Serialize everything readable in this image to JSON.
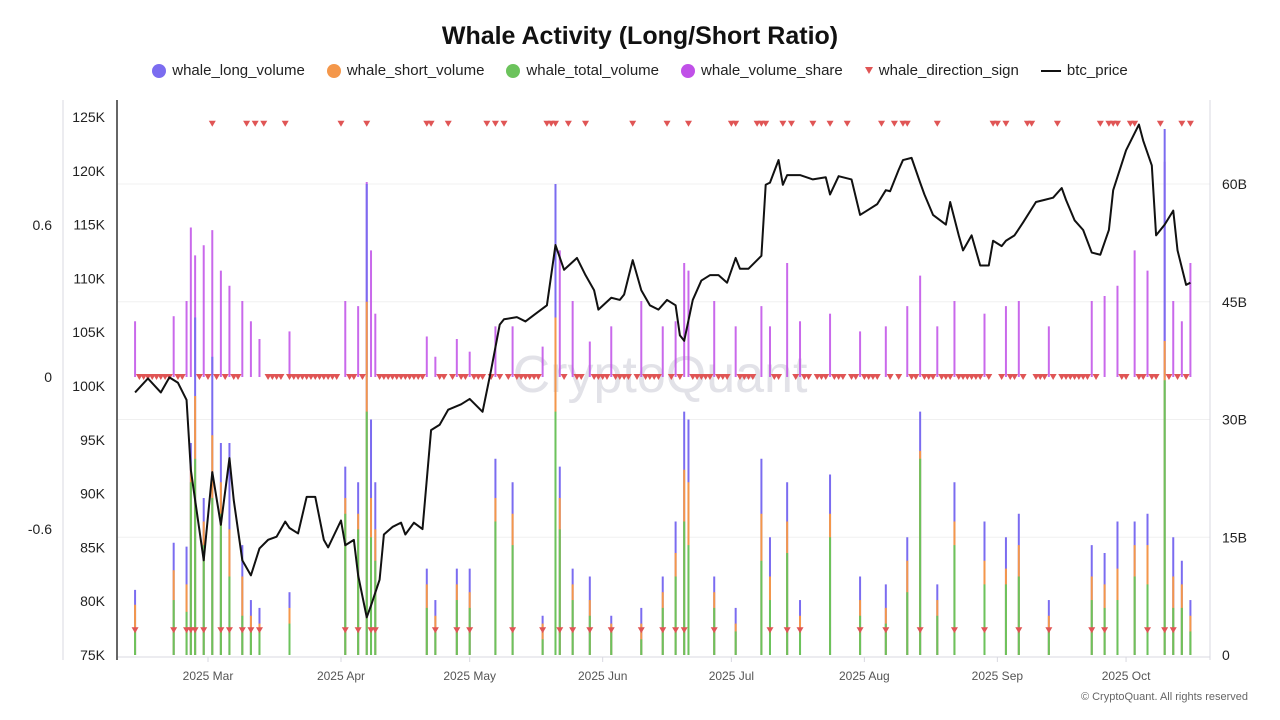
{
  "title": "Whale Activity (Long/Short Ratio)",
  "copyright": "© CryptoQuant. All rights reserved",
  "watermark": "CryptoQuant",
  "legend": [
    {
      "label": "whale_long_volume",
      "color": "#7b6cf0",
      "shape": "circle"
    },
    {
      "label": "whale_short_volume",
      "color": "#f4974a",
      "shape": "circle"
    },
    {
      "label": "whale_total_volume",
      "color": "#6cc35c",
      "shape": "circle"
    },
    {
      "label": "whale_volume_share",
      "color": "#c050e8",
      "shape": "circle"
    },
    {
      "label": "whale_direction_sign",
      "color": "#e05555",
      "shape": "triangle-down"
    },
    {
      "label": "btc_price",
      "color": "#111111",
      "shape": "line"
    }
  ],
  "chart_data": {
    "type": "bar+line",
    "title": "Whale Activity (Long/Short Ratio)",
    "axes": {
      "ratio_axis": {
        "ticks": [
          "0.6",
          "0",
          "-0.6"
        ],
        "values": [
          0.6,
          0,
          -0.6
        ],
        "position": "far-left"
      },
      "price_axis": {
        "ticks": [
          "125K",
          "120K",
          "115K",
          "110K",
          "105K",
          "100K",
          "95K",
          "90K",
          "85K",
          "80K",
          "75K"
        ],
        "range": [
          75,
          125
        ],
        "unit": "K",
        "position": "left"
      },
      "volume_axis": {
        "ticks": [
          "60B",
          "45B",
          "30B",
          "15B",
          "0"
        ],
        "values": [
          60,
          45,
          30,
          15,
          0
        ],
        "range": [
          0,
          70
        ],
        "unit": "B",
        "position": "right"
      },
      "x_axis": {
        "ticks": [
          "2025 Mar",
          "2025 Apr",
          "2025 May",
          "2025 Jun",
          "2025 Jul",
          "2025 Aug",
          "2025 Sep",
          "2025 Oct"
        ],
        "tick_dates": [
          "2025-03-01",
          "2025-04-01",
          "2025-05-01",
          "2025-06-01",
          "2025-07-01",
          "2025-08-01",
          "2025-09-01",
          "2025-10-01"
        ],
        "range": [
          "2025-02-12",
          "2025-10-16"
        ]
      }
    },
    "grid": true,
    "legend_position": "top",
    "btc_price": [
      [
        "2025-02-12",
        99.4
      ],
      [
        "2025-02-15",
        100.7
      ],
      [
        "2025-02-18",
        99.4
      ],
      [
        "2025-02-20",
        100.8
      ],
      [
        "2025-02-22",
        100.3
      ],
      [
        "2025-02-24",
        98.7
      ],
      [
        "2025-02-25",
        92.2
      ],
      [
        "2025-02-26",
        89.4
      ],
      [
        "2025-02-28",
        83.8
      ],
      [
        "2025-03-02",
        92.0
      ],
      [
        "2025-03-04",
        87.1
      ],
      [
        "2025-03-06",
        93.3
      ],
      [
        "2025-03-07",
        89.4
      ],
      [
        "2025-03-09",
        83.8
      ],
      [
        "2025-03-11",
        82.4
      ],
      [
        "2025-03-13",
        84.9
      ],
      [
        "2025-03-15",
        85.7
      ],
      [
        "2025-03-17",
        86.0
      ],
      [
        "2025-03-19",
        87.4
      ],
      [
        "2025-03-20",
        86.8
      ],
      [
        "2025-03-22",
        86.3
      ],
      [
        "2025-03-24",
        89.7
      ],
      [
        "2025-03-26",
        89.7
      ],
      [
        "2025-03-28",
        85.7
      ],
      [
        "2025-03-29",
        85.0
      ],
      [
        "2025-04-01",
        87.5
      ],
      [
        "2025-04-02",
        85.2
      ],
      [
        "2025-04-04",
        85.7
      ],
      [
        "2025-04-05",
        82.4
      ],
      [
        "2025-04-07",
        78.5
      ],
      [
        "2025-04-08",
        79.6
      ],
      [
        "2025-04-10",
        82.0
      ],
      [
        "2025-04-11",
        86.2
      ],
      [
        "2025-04-13",
        86.9
      ],
      [
        "2025-04-15",
        87.3
      ],
      [
        "2025-04-16",
        86.2
      ],
      [
        "2025-04-18",
        87.3
      ],
      [
        "2025-04-20",
        86.7
      ],
      [
        "2025-04-22",
        95.9
      ],
      [
        "2025-04-24",
        96.4
      ],
      [
        "2025-04-26",
        97.8
      ],
      [
        "2025-04-29",
        98.3
      ],
      [
        "2025-05-01",
        98.8
      ],
      [
        "2025-05-04",
        97.6
      ],
      [
        "2025-05-06",
        101.5
      ],
      [
        "2025-05-08",
        105.7
      ],
      [
        "2025-05-09",
        106.2
      ],
      [
        "2025-05-12",
        106.4
      ],
      [
        "2025-05-14",
        106.0
      ],
      [
        "2025-05-16",
        106.6
      ],
      [
        "2025-05-19",
        107.5
      ],
      [
        "2025-05-21",
        113.1
      ],
      [
        "2025-05-23",
        110.8
      ],
      [
        "2025-05-26",
        111.9
      ],
      [
        "2025-05-28",
        110.3
      ],
      [
        "2025-05-30",
        108.9
      ],
      [
        "2025-05-31",
        107.1
      ],
      [
        "2025-06-03",
        108.2
      ],
      [
        "2025-06-05",
        108.0
      ],
      [
        "2025-06-06",
        108.5
      ],
      [
        "2025-06-08",
        111.7
      ],
      [
        "2025-06-10",
        108.9
      ],
      [
        "2025-06-12",
        107.5
      ],
      [
        "2025-06-14",
        107.1
      ],
      [
        "2025-06-16",
        108.0
      ],
      [
        "2025-06-18",
        107.5
      ],
      [
        "2025-06-19",
        104.7
      ],
      [
        "2025-06-20",
        104.2
      ],
      [
        "2025-06-22",
        108.0
      ],
      [
        "2025-06-24",
        109.8
      ],
      [
        "2025-06-26",
        110.3
      ],
      [
        "2025-06-28",
        110.3
      ],
      [
        "2025-06-30",
        109.6
      ],
      [
        "2025-07-02",
        111.9
      ],
      [
        "2025-07-03",
        110.9
      ],
      [
        "2025-07-05",
        110.9
      ],
      [
        "2025-07-08",
        112.1
      ],
      [
        "2025-07-09",
        118.7
      ],
      [
        "2025-07-10",
        118.9
      ],
      [
        "2025-07-12",
        121.0
      ],
      [
        "2025-07-13",
        118.7
      ],
      [
        "2025-07-14",
        119.6
      ],
      [
        "2025-07-17",
        119.6
      ],
      [
        "2025-07-20",
        119.2
      ],
      [
        "2025-07-23",
        119.4
      ],
      [
        "2025-07-24",
        117.8
      ],
      [
        "2025-07-26",
        119.5
      ],
      [
        "2025-07-29",
        119.2
      ],
      [
        "2025-07-31",
        115.9
      ],
      [
        "2025-08-02",
        116.4
      ],
      [
        "2025-08-04",
        116.9
      ],
      [
        "2025-08-06",
        118.2
      ],
      [
        "2025-08-07",
        118.1
      ],
      [
        "2025-08-09",
        120.1
      ],
      [
        "2025-08-10",
        121.0
      ],
      [
        "2025-08-12",
        121.2
      ],
      [
        "2025-08-14",
        118.9
      ],
      [
        "2025-08-15",
        117.8
      ],
      [
        "2025-08-17",
        115.9
      ],
      [
        "2025-08-20",
        115.0
      ],
      [
        "2025-08-21",
        117.1
      ],
      [
        "2025-08-23",
        114.0
      ],
      [
        "2025-08-24",
        112.6
      ],
      [
        "2025-08-26",
        114.0
      ],
      [
        "2025-08-28",
        111.2
      ],
      [
        "2025-08-30",
        111.2
      ],
      [
        "2025-08-31",
        113.5
      ],
      [
        "2025-09-02",
        113.0
      ],
      [
        "2025-09-03",
        113.5
      ],
      [
        "2025-09-05",
        114.0
      ],
      [
        "2025-09-07",
        115.2
      ],
      [
        "2025-09-10",
        117.1
      ],
      [
        "2025-09-12",
        117.3
      ],
      [
        "2025-09-14",
        117.5
      ],
      [
        "2025-09-16",
        118.4
      ],
      [
        "2025-09-17",
        117.3
      ],
      [
        "2025-09-19",
        115.4
      ],
      [
        "2025-09-21",
        114.5
      ],
      [
        "2025-09-23",
        112.4
      ],
      [
        "2025-09-25",
        112.2
      ],
      [
        "2025-09-27",
        114.5
      ],
      [
        "2025-09-28",
        118.2
      ],
      [
        "2025-10-01",
        121.9
      ],
      [
        "2025-10-04",
        124.3
      ],
      [
        "2025-10-05",
        122.8
      ],
      [
        "2025-10-07",
        120.5
      ],
      [
        "2025-10-08",
        114.0
      ],
      [
        "2025-10-10",
        115.0
      ],
      [
        "2025-10-12",
        116.3
      ],
      [
        "2025-10-13",
        112.6
      ],
      [
        "2025-10-15",
        109.4
      ],
      [
        "2025-10-16",
        109.6
      ]
    ],
    "whale_volume_columns": [
      "date",
      "whale_long_volume",
      "whale_short_volume",
      "whale_total_volume",
      "whale_volume_share"
    ],
    "whale_volume": [
      [
        "2025-02-12",
        8.3,
        6.4,
        3.4,
        0.22
      ],
      [
        "2025-02-21",
        14.3,
        10.8,
        7.0,
        0.24
      ],
      [
        "2025-02-24",
        13.8,
        9.0,
        5.5,
        0.3
      ],
      [
        "2025-02-25",
        27,
        24,
        22,
        0.59
      ],
      [
        "2025-02-26",
        43,
        33,
        25,
        0.48
      ],
      [
        "2025-02-28",
        20,
        17,
        14,
        0.52
      ],
      [
        "2025-03-02",
        38,
        28,
        20,
        0.58
      ],
      [
        "2025-03-04",
        27,
        22,
        18,
        0.42
      ],
      [
        "2025-03-06",
        27,
        16,
        10,
        0.36
      ],
      [
        "2025-03-09",
        14,
        10,
        5,
        0.3
      ],
      [
        "2025-03-11",
        7,
        5,
        3,
        0.22
      ],
      [
        "2025-03-13",
        6,
        4,
        3,
        0.15
      ],
      [
        "2025-03-20",
        8,
        6,
        4,
        0.18
      ],
      [
        "2025-04-02",
        24,
        20,
        18,
        0.3
      ],
      [
        "2025-04-05",
        22,
        18,
        16,
        0.28
      ],
      [
        "2025-04-07",
        60,
        45,
        31,
        0.77
      ],
      [
        "2025-04-08",
        30,
        20,
        15,
        0.5
      ],
      [
        "2025-04-09",
        22,
        16,
        12,
        0.25
      ],
      [
        "2025-04-21",
        11,
        9,
        6,
        0.16
      ],
      [
        "2025-04-23",
        7,
        5,
        3,
        0.08
      ],
      [
        "2025-04-28",
        11,
        9,
        7,
        0.15
      ],
      [
        "2025-05-01",
        11,
        8,
        6,
        0.1
      ],
      [
        "2025-05-07",
        25,
        20,
        17,
        0.2
      ],
      [
        "2025-05-11",
        22,
        18,
        14,
        0.2
      ],
      [
        "2025-05-18",
        5,
        4,
        2,
        0.12
      ],
      [
        "2025-05-21",
        60,
        43,
        31,
        0.62
      ],
      [
        "2025-05-22",
        24,
        20,
        16,
        0.5
      ],
      [
        "2025-05-25",
        11,
        9,
        7,
        0.3
      ],
      [
        "2025-05-29",
        10,
        7,
        5,
        0.14
      ],
      [
        "2025-06-03",
        5,
        4,
        3,
        0.2
      ],
      [
        "2025-06-10",
        6,
        4,
        2,
        0.3
      ],
      [
        "2025-06-15",
        10,
        8,
        6,
        0.2
      ],
      [
        "2025-06-18",
        17,
        13,
        10,
        0.22
      ],
      [
        "2025-06-20",
        31,
        23.6,
        17,
        0.45
      ],
      [
        "2025-06-21",
        30,
        22,
        14,
        0.42
      ],
      [
        "2025-06-27",
        10,
        8,
        6,
        0.3
      ],
      [
        "2025-07-02",
        6,
        4,
        3,
        0.2
      ],
      [
        "2025-07-08",
        25,
        18,
        12,
        0.28
      ],
      [
        "2025-07-10",
        15,
        10,
        7,
        0.2
      ],
      [
        "2025-07-14",
        22,
        17,
        13,
        0.45
      ],
      [
        "2025-07-17",
        7,
        5,
        3,
        0.22
      ],
      [
        "2025-07-24",
        23,
        18,
        15,
        0.25
      ],
      [
        "2025-07-31",
        10,
        7,
        5,
        0.18
      ],
      [
        "2025-08-06",
        9,
        6,
        4,
        0.2
      ],
      [
        "2025-08-11",
        15,
        12,
        8,
        0.28
      ],
      [
        "2025-08-14",
        31,
        26,
        25,
        0.4
      ],
      [
        "2025-08-18",
        9,
        7,
        5,
        0.2
      ],
      [
        "2025-08-22",
        22,
        17,
        14,
        0.3
      ],
      [
        "2025-08-29",
        17,
        12,
        9,
        0.25
      ],
      [
        "2025-09-03",
        15,
        11,
        9,
        0.28
      ],
      [
        "2025-09-06",
        18,
        14,
        10,
        0.3
      ],
      [
        "2025-09-13",
        7,
        5,
        3,
        0.2
      ],
      [
        "2025-09-23",
        14,
        10,
        7,
        0.3
      ],
      [
        "2025-09-26",
        13,
        9,
        6,
        0.32
      ],
      [
        "2025-09-29",
        17,
        11,
        7,
        0.36
      ],
      [
        "2025-10-03",
        17,
        14,
        10,
        0.5
      ],
      [
        "2025-10-06",
        18,
        14,
        9,
        0.42
      ],
      [
        "2025-10-10",
        67,
        40,
        35,
        0.85
      ],
      [
        "2025-10-12",
        15,
        10,
        6,
        0.3
      ],
      [
        "2025-10-14",
        12,
        9,
        6,
        0.22
      ],
      [
        "2025-10-16",
        7,
        5,
        3,
        0.45
      ]
    ],
    "whale_direction_sign": {
      "positive_dates": [
        "2025-03-02",
        "2025-03-10",
        "2025-03-12",
        "2025-03-14",
        "2025-03-19",
        "2025-04-01",
        "2025-04-07",
        "2025-04-21",
        "2025-04-22",
        "2025-04-26",
        "2025-05-05",
        "2025-05-07",
        "2025-05-09",
        "2025-05-19",
        "2025-05-20",
        "2025-05-21",
        "2025-05-24",
        "2025-05-28",
        "2025-06-08",
        "2025-06-16",
        "2025-06-21",
        "2025-07-01",
        "2025-07-02",
        "2025-07-07",
        "2025-07-08",
        "2025-07-09",
        "2025-07-13",
        "2025-07-15",
        "2025-07-20",
        "2025-07-24",
        "2025-07-28",
        "2025-08-05",
        "2025-08-08",
        "2025-08-10",
        "2025-08-11",
        "2025-08-18",
        "2025-08-31",
        "2025-09-01",
        "2025-09-03",
        "2025-09-08",
        "2025-09-09",
        "2025-09-15",
        "2025-09-25",
        "2025-09-27",
        "2025-09-28",
        "2025-09-29",
        "2025-10-02",
        "2025-10-03",
        "2025-10-09",
        "2025-10-14",
        "2025-10-16"
      ],
      "negative_dates": [
        "2025-02-12",
        "2025-02-21",
        "2025-02-24",
        "2025-02-25",
        "2025-02-26",
        "2025-02-28",
        "2025-03-04",
        "2025-03-06",
        "2025-03-09",
        "2025-03-11",
        "2025-03-13",
        "2025-04-02",
        "2025-04-05",
        "2025-04-08",
        "2025-04-09",
        "2025-04-23",
        "2025-04-28",
        "2025-05-01",
        "2025-05-11",
        "2025-05-18",
        "2025-05-22",
        "2025-05-25",
        "2025-05-29",
        "2025-06-03",
        "2025-06-10",
        "2025-06-15",
        "2025-06-18",
        "2025-06-20",
        "2025-06-27",
        "2025-07-10",
        "2025-07-14",
        "2025-07-17",
        "2025-07-31",
        "2025-08-06",
        "2025-08-14",
        "2025-08-22",
        "2025-08-29",
        "2025-09-06",
        "2025-09-13",
        "2025-09-23",
        "2025-09-26",
        "2025-10-06",
        "2025-10-10",
        "2025-10-12"
      ],
      "other_days_value": 0
    }
  }
}
